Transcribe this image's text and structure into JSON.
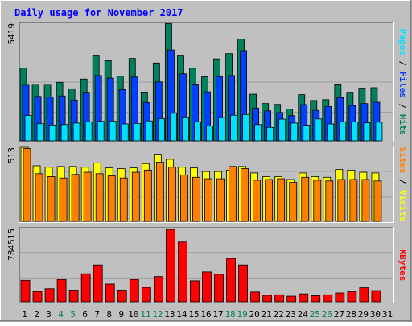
{
  "title": "Daily usage for November 2017",
  "colors": {
    "background": "#c0c0c0",
    "title": "#0000ff",
    "hits": "#00805c",
    "files": "#0040ff",
    "pages": "#00e0ff",
    "visits": "#ffff00",
    "sites": "#ff8000",
    "kbytes": "#ff0000",
    "weekend_label": "#00805c",
    "weekday_label": "#000000"
  },
  "chart_data": [
    {
      "type": "bar",
      "panel": "hits-files-pages",
      "ymax_label": "5419",
      "ylim": [
        0,
        5419
      ],
      "right_labels": [
        "Pages",
        "Files",
        "Hits"
      ],
      "categories": [
        "1",
        "2",
        "3",
        "4",
        "5",
        "6",
        "7",
        "8",
        "9",
        "10",
        "11",
        "12",
        "13",
        "14",
        "15",
        "16",
        "17",
        "18",
        "19",
        "20",
        "21",
        "22",
        "23",
        "24",
        "25",
        "26",
        "27",
        "28",
        "29",
        "30",
        "31"
      ],
      "series": [
        {
          "name": "Hits",
          "values": [
            3350,
            2600,
            2600,
            2700,
            2400,
            2850,
            3950,
            3700,
            2980,
            3800,
            2250,
            3590,
            5400,
            3950,
            3350,
            2950,
            3780,
            4020,
            4690,
            2150,
            1720,
            1680,
            1470,
            2130,
            1860,
            1900,
            2620,
            2240,
            2430,
            2450,
            null
          ]
        },
        {
          "name": "Files",
          "values": [
            2600,
            2050,
            2020,
            2070,
            1880,
            2240,
            3010,
            2890,
            2360,
            2940,
            1770,
            2720,
            4190,
            3090,
            2620,
            2260,
            2960,
            3010,
            4160,
            1510,
            1380,
            1300,
            1160,
            1670,
            1400,
            1580,
            1990,
            1630,
            1720,
            1780,
            null
          ]
        },
        {
          "name": "Pages",
          "values": [
            1170,
            790,
            730,
            750,
            820,
            880,
            900,
            910,
            780,
            800,
            920,
            1020,
            1270,
            1100,
            880,
            680,
            1070,
            1180,
            1210,
            750,
            620,
            1000,
            820,
            720,
            1010,
            780,
            880,
            870,
            830,
            860,
            null
          ]
        }
      ]
    },
    {
      "type": "bar",
      "panel": "visits-sites",
      "ymax_label": "513",
      "ylim": [
        0,
        513
      ],
      "right_labels": [
        "Sites",
        "Visits"
      ],
      "categories": [
        "1",
        "2",
        "3",
        "4",
        "5",
        "6",
        "7",
        "8",
        "9",
        "10",
        "11",
        "12",
        "13",
        "14",
        "15",
        "16",
        "17",
        "18",
        "19",
        "20",
        "21",
        "22",
        "23",
        "24",
        "25",
        "26",
        "27",
        "28",
        "29",
        "30",
        "31"
      ],
      "series": [
        {
          "name": "Visits",
          "values": [
            513,
            385,
            375,
            380,
            380,
            375,
            405,
            370,
            365,
            370,
            400,
            465,
            430,
            375,
            370,
            345,
            345,
            355,
            380,
            335,
            310,
            310,
            290,
            335,
            310,
            305,
            360,
            355,
            340,
            335,
            null
          ]
        },
        {
          "name": "Sites",
          "values": [
            505,
            330,
            310,
            300,
            325,
            340,
            330,
            315,
            300,
            340,
            355,
            410,
            375,
            320,
            305,
            295,
            295,
            380,
            365,
            285,
            290,
            295,
            270,
            305,
            285,
            280,
            290,
            290,
            290,
            280,
            null
          ]
        }
      ]
    },
    {
      "type": "bar",
      "panel": "kbytes",
      "ymax_label": "784515",
      "ylim": [
        0,
        784515
      ],
      "right_labels": [
        "KBytes"
      ],
      "categories": [
        "1",
        "2",
        "3",
        "4",
        "5",
        "6",
        "7",
        "8",
        "9",
        "10",
        "11",
        "12",
        "13",
        "14",
        "15",
        "16",
        "17",
        "18",
        "19",
        "20",
        "21",
        "22",
        "23",
        "24",
        "25",
        "26",
        "27",
        "28",
        "29",
        "30",
        "31"
      ],
      "series": [
        {
          "name": "KBytes",
          "values": [
            230000,
            110000,
            140000,
            240000,
            125000,
            300000,
            395000,
            190000,
            125000,
            240000,
            155000,
            270000,
            775000,
            640000,
            225000,
            320000,
            295000,
            465000,
            395000,
            105000,
            70000,
            75000,
            60000,
            85000,
            65000,
            75000,
            95000,
            110000,
            150000,
            120000,
            null
          ]
        }
      ]
    }
  ],
  "x_labels": [
    {
      "day": "1",
      "weekend": false
    },
    {
      "day": "2",
      "weekend": false
    },
    {
      "day": "3",
      "weekend": false
    },
    {
      "day": "4",
      "weekend": true
    },
    {
      "day": "5",
      "weekend": true
    },
    {
      "day": "6",
      "weekend": false
    },
    {
      "day": "7",
      "weekend": false
    },
    {
      "day": "8",
      "weekend": false
    },
    {
      "day": "9",
      "weekend": false
    },
    {
      "day": "10",
      "weekend": false
    },
    {
      "day": "11",
      "weekend": true
    },
    {
      "day": "12",
      "weekend": true
    },
    {
      "day": "13",
      "weekend": false
    },
    {
      "day": "14",
      "weekend": false
    },
    {
      "day": "15",
      "weekend": false
    },
    {
      "day": "16",
      "weekend": false
    },
    {
      "day": "17",
      "weekend": false
    },
    {
      "day": "18",
      "weekend": true
    },
    {
      "day": "19",
      "weekend": true
    },
    {
      "day": "20",
      "weekend": false
    },
    {
      "day": "21",
      "weekend": false
    },
    {
      "day": "22",
      "weekend": false
    },
    {
      "day": "23",
      "weekend": false
    },
    {
      "day": "24",
      "weekend": false
    },
    {
      "day": "25",
      "weekend": true
    },
    {
      "day": "26",
      "weekend": true
    },
    {
      "day": "27",
      "weekend": false
    },
    {
      "day": "28",
      "weekend": false
    },
    {
      "day": "29",
      "weekend": false
    },
    {
      "day": "30",
      "weekend": false
    },
    {
      "day": "31",
      "weekend": false
    }
  ]
}
